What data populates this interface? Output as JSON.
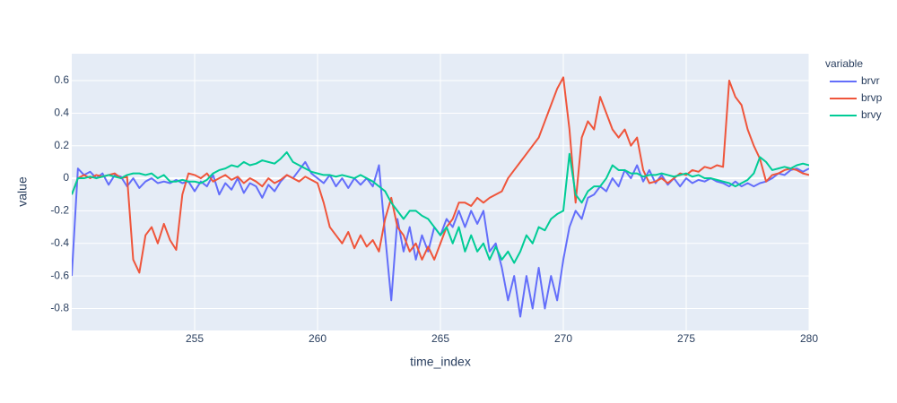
{
  "chart_data": {
    "type": "line",
    "x_label": "time_index",
    "y_label": "value",
    "legend_title": "variable",
    "xlim": [
      250,
      280
    ],
    "ylim": [
      -0.935,
      0.765
    ],
    "xticks": [
      255,
      260,
      265,
      270,
      275,
      280
    ],
    "yticks": [
      -0.8,
      -0.6,
      -0.4,
      -0.2,
      0,
      0.2,
      0.4,
      0.6
    ],
    "grid": true,
    "legend": "right",
    "x": [
      250,
      250.25,
      250.5,
      250.75,
      251,
      251.25,
      251.5,
      251.75,
      252,
      252.25,
      252.5,
      252.75,
      253,
      253.25,
      253.5,
      253.75,
      254,
      254.25,
      254.5,
      254.75,
      255,
      255.25,
      255.5,
      255.75,
      256,
      256.25,
      256.5,
      256.75,
      257,
      257.25,
      257.5,
      257.75,
      258,
      258.25,
      258.5,
      258.75,
      259,
      259.25,
      259.5,
      259.75,
      260,
      260.25,
      260.5,
      260.75,
      261,
      261.25,
      261.5,
      261.75,
      262,
      262.25,
      262.5,
      262.75,
      263,
      263.25,
      263.5,
      263.75,
      264,
      264.25,
      264.5,
      264.75,
      265,
      265.25,
      265.5,
      265.75,
      266,
      266.25,
      266.5,
      266.75,
      267,
      267.25,
      267.5,
      267.75,
      268,
      268.25,
      268.5,
      268.75,
      269,
      269.25,
      269.5,
      269.75,
      270,
      270.25,
      270.5,
      270.75,
      271,
      271.25,
      271.5,
      271.75,
      272,
      272.25,
      272.5,
      272.75,
      273,
      273.25,
      273.5,
      273.75,
      274,
      274.25,
      274.5,
      274.75,
      275,
      275.25,
      275.5,
      275.75,
      276,
      276.25,
      276.5,
      276.75,
      277,
      277.25,
      277.5,
      277.75,
      278,
      278.25,
      278.5,
      278.75,
      279,
      279.25,
      279.5,
      279.75,
      280
    ],
    "series": [
      {
        "name": "brvr",
        "color": "#636efa",
        "values": [
          -0.6,
          0.06,
          0.02,
          0.04,
          0.0,
          0.03,
          -0.04,
          0.02,
          0.01,
          -0.05,
          0.0,
          -0.06,
          -0.02,
          0.0,
          -0.03,
          -0.02,
          -0.03,
          -0.01,
          -0.03,
          -0.02,
          -0.08,
          -0.02,
          -0.05,
          0.02,
          -0.1,
          -0.03,
          -0.07,
          0.0,
          -0.09,
          -0.03,
          -0.05,
          -0.12,
          -0.04,
          -0.08,
          -0.02,
          0.02,
          0.0,
          0.05,
          0.1,
          0.03,
          0.0,
          -0.03,
          0.02,
          -0.05,
          0.0,
          -0.06,
          0.0,
          -0.04,
          0.0,
          -0.05,
          0.08,
          -0.35,
          -0.75,
          -0.25,
          -0.45,
          -0.3,
          -0.5,
          -0.35,
          -0.45,
          -0.3,
          -0.35,
          -0.25,
          -0.3,
          -0.2,
          -0.3,
          -0.2,
          -0.28,
          -0.2,
          -0.45,
          -0.4,
          -0.55,
          -0.75,
          -0.6,
          -0.85,
          -0.6,
          -0.8,
          -0.55,
          -0.8,
          -0.6,
          -0.75,
          -0.5,
          -0.3,
          -0.2,
          -0.25,
          -0.12,
          -0.1,
          -0.05,
          -0.08,
          0.0,
          -0.05,
          0.05,
          0.0,
          0.08,
          -0.02,
          0.05,
          -0.03,
          0.02,
          -0.04,
          0.0,
          -0.05,
          0.0,
          -0.03,
          -0.01,
          -0.02,
          0.0,
          -0.02,
          -0.03,
          -0.05,
          -0.02,
          -0.05,
          -0.03,
          -0.05,
          -0.03,
          -0.02,
          0.0,
          0.03,
          0.02,
          0.05,
          0.06,
          0.04,
          0.06
        ]
      },
      {
        "name": "brvp",
        "color": "#ef553b",
        "values": [
          -0.1,
          0.0,
          0.02,
          0.0,
          0.02,
          0.01,
          0.02,
          0.03,
          0.0,
          0.01,
          -0.5,
          -0.58,
          -0.35,
          -0.3,
          -0.4,
          -0.28,
          -0.38,
          -0.44,
          -0.1,
          0.03,
          0.02,
          0.0,
          0.03,
          -0.02,
          0.0,
          0.02,
          -0.01,
          0.01,
          -0.03,
          0.0,
          -0.02,
          -0.05,
          0.0,
          -0.03,
          -0.01,
          0.02,
          0.0,
          -0.02,
          0.01,
          -0.01,
          -0.03,
          -0.15,
          -0.3,
          -0.35,
          -0.4,
          -0.33,
          -0.43,
          -0.35,
          -0.42,
          -0.38,
          -0.45,
          -0.25,
          -0.12,
          -0.3,
          -0.35,
          -0.45,
          -0.4,
          -0.5,
          -0.42,
          -0.5,
          -0.4,
          -0.3,
          -0.25,
          -0.15,
          -0.15,
          -0.17,
          -0.12,
          -0.15,
          -0.12,
          -0.1,
          -0.08,
          0.0,
          0.05,
          0.1,
          0.15,
          0.2,
          0.25,
          0.35,
          0.45,
          0.55,
          0.62,
          0.3,
          -0.15,
          0.25,
          0.35,
          0.3,
          0.5,
          0.4,
          0.3,
          0.25,
          0.3,
          0.2,
          0.25,
          0.05,
          -0.03,
          -0.02,
          0.0,
          -0.03,
          0.0,
          0.03,
          0.02,
          0.05,
          0.04,
          0.07,
          0.06,
          0.08,
          0.07,
          0.6,
          0.5,
          0.45,
          0.3,
          0.2,
          0.12,
          -0.02,
          0.02,
          0.03,
          0.05,
          0.06,
          0.05,
          0.03,
          0.02
        ]
      },
      {
        "name": "brvy",
        "color": "#00cc96",
        "values": [
          -0.1,
          0.0,
          0.0,
          0.01,
          0.0,
          0.01,
          0.02,
          0.01,
          0.0,
          0.02,
          0.03,
          0.03,
          0.02,
          0.03,
          0.0,
          0.02,
          -0.02,
          -0.02,
          -0.01,
          -0.02,
          -0.02,
          -0.03,
          -0.01,
          0.03,
          0.05,
          0.06,
          0.08,
          0.07,
          0.1,
          0.08,
          0.09,
          0.11,
          0.1,
          0.09,
          0.12,
          0.16,
          0.1,
          0.08,
          0.06,
          0.04,
          0.03,
          0.02,
          0.02,
          0.01,
          0.02,
          0.01,
          0.0,
          0.02,
          0.0,
          -0.02,
          -0.05,
          -0.08,
          -0.15,
          -0.2,
          -0.25,
          -0.2,
          -0.2,
          -0.23,
          -0.25,
          -0.3,
          -0.35,
          -0.3,
          -0.4,
          -0.3,
          -0.45,
          -0.35,
          -0.45,
          -0.4,
          -0.5,
          -0.42,
          -0.5,
          -0.45,
          -0.52,
          -0.45,
          -0.35,
          -0.4,
          -0.3,
          -0.32,
          -0.25,
          -0.22,
          -0.2,
          0.15,
          -0.1,
          -0.15,
          -0.08,
          -0.05,
          -0.05,
          0.0,
          0.08,
          0.05,
          0.05,
          0.03,
          0.03,
          0.01,
          0.02,
          0.02,
          0.03,
          0.02,
          0.01,
          0.02,
          0.03,
          0.01,
          0.02,
          0.0,
          0.0,
          -0.01,
          -0.02,
          -0.03,
          -0.05,
          -0.03,
          -0.01,
          0.03,
          0.13,
          0.1,
          0.05,
          0.06,
          0.07,
          0.06,
          0.08,
          0.09,
          0.08
        ]
      }
    ]
  }
}
